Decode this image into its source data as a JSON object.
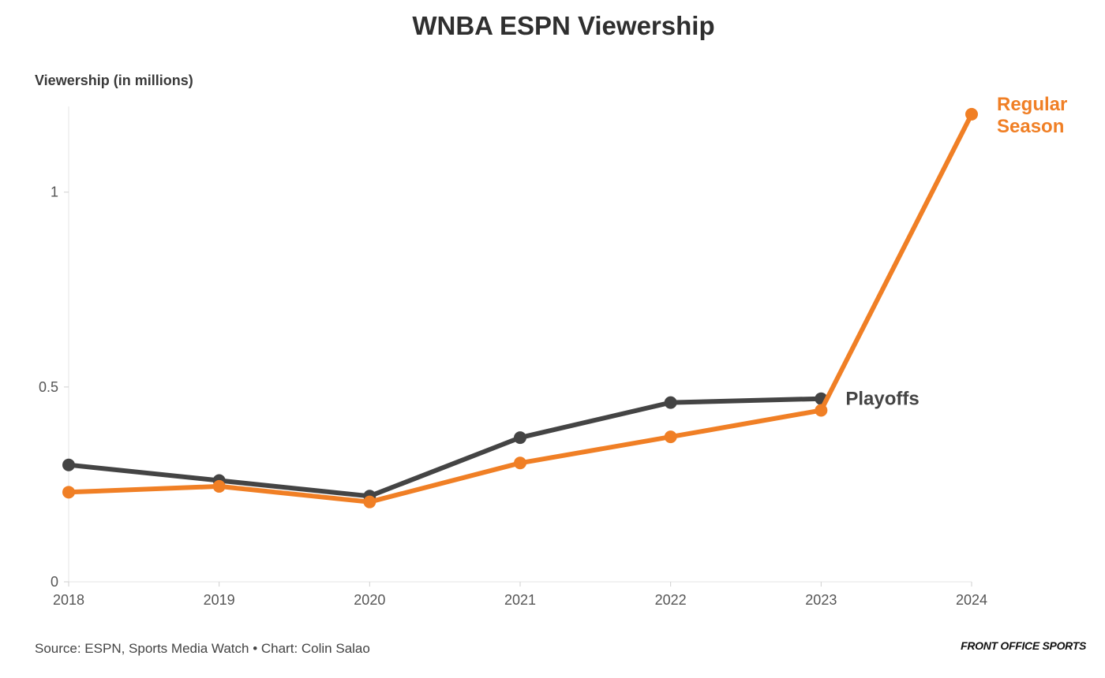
{
  "chart_data": {
    "type": "line",
    "title": "WNBA ESPN Viewership",
    "ylabel": "Viewership (in millions)",
    "xlabel": "",
    "x": [
      "2018",
      "2019",
      "2020",
      "2021",
      "2022",
      "2023",
      "2024"
    ],
    "ylim": [
      0,
      1.22
    ],
    "yticks": [
      0,
      0.5,
      1
    ],
    "ytick_labels": [
      "0",
      "0.5",
      "1"
    ],
    "grid": false,
    "series": [
      {
        "name": "Playoffs",
        "color": "#444444",
        "values": [
          0.3,
          0.26,
          0.22,
          0.37,
          0.46,
          0.47,
          null
        ]
      },
      {
        "name": "Regular Season",
        "label_lines": [
          "Regular",
          "Season"
        ],
        "color": "#f07f25",
        "values": [
          0.23,
          0.245,
          0.205,
          0.305,
          0.372,
          0.44,
          1.2
        ]
      }
    ],
    "source": "Source: ESPN, Sports Media Watch • Chart: Colin Salao",
    "brand": "FRONT OFFICE SPORTS"
  }
}
